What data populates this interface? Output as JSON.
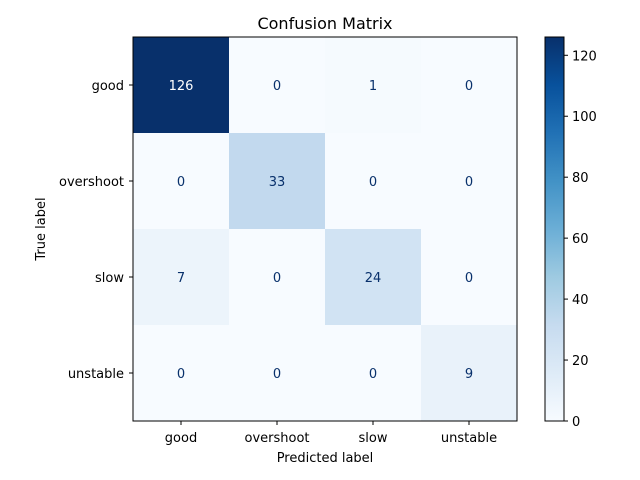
{
  "chart_data": {
    "type": "heatmap",
    "title": "Confusion Matrix",
    "xlabel": "Predicted label",
    "ylabel": "True label",
    "x_categories": [
      "good",
      "overshoot",
      "slow",
      "unstable"
    ],
    "y_categories": [
      "good",
      "overshoot",
      "slow",
      "unstable"
    ],
    "values": [
      [
        126,
        0,
        1,
        0
      ],
      [
        0,
        33,
        0,
        0
      ],
      [
        7,
        0,
        24,
        0
      ],
      [
        0,
        0,
        0,
        9
      ]
    ],
    "colormap": "Blues",
    "colorbar": {
      "range": [
        0,
        126
      ],
      "ticks": [
        0,
        20,
        40,
        60,
        80,
        100,
        120
      ]
    },
    "colors": {
      "low": "#f7fbff",
      "high": "#08306b",
      "text_dark": "#08306b",
      "text_light": "#ffffff"
    }
  }
}
